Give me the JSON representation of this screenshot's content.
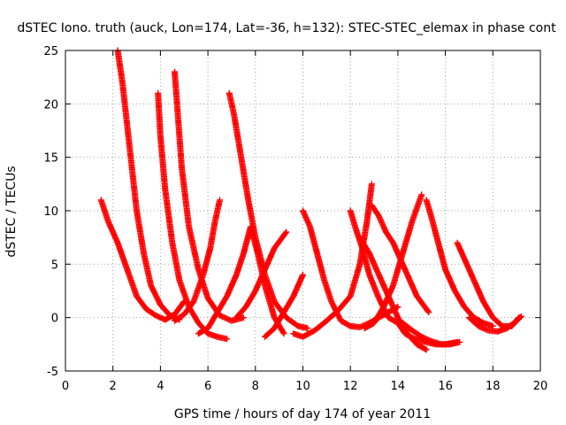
{
  "chart_data": {
    "type": "scatter",
    "title": "dSTEC Iono. truth (auck, Lon=174, Lat=-36, h=132): STEC-STEC_elemax in phase cont",
    "xlabel": "GPS time / hours of day 174 of year 2011",
    "ylabel": "dSTEC  / TECUs",
    "xlim": [
      0,
      20
    ],
    "ylim": [
      -5,
      25
    ],
    "xticks": [
      0,
      2,
      4,
      6,
      8,
      10,
      12,
      14,
      16,
      18,
      20
    ],
    "yticks": [
      -5,
      0,
      5,
      10,
      15,
      20,
      25
    ],
    "xtick_labels": [
      "0",
      "2",
      "4",
      "6",
      "8",
      "10",
      "12",
      "14",
      "16",
      "18",
      "20"
    ],
    "ytick_labels": [
      "-5",
      "0",
      "5",
      "10",
      "15",
      "20",
      "25"
    ],
    "grid": true,
    "marker": "plus",
    "series_color": "#ff0000",
    "series": [
      {
        "x": [
          1.5,
          1.8,
          2.2,
          2.6,
          3.0,
          3.4,
          3.8,
          4.2,
          4.6,
          5.0
        ],
        "y": [
          11,
          9,
          7,
          4.5,
          2,
          0.8,
          0.2,
          -0.2,
          0.3,
          1.5
        ]
      },
      {
        "x": [
          2.2,
          2.4,
          2.6,
          2.8,
          3.0,
          3.3,
          3.6,
          4.0,
          4.4,
          4.8
        ],
        "y": [
          25,
          22,
          18,
          14,
          10,
          6,
          3,
          1.2,
          0.2,
          -0.2
        ]
      },
      {
        "x": [
          3.9,
          4.0,
          4.2,
          4.5,
          4.8,
          5.2,
          5.6,
          6.0,
          6.4,
          6.8
        ],
        "y": [
          21,
          17,
          12,
          7,
          3.5,
          1,
          -0.5,
          -1.5,
          -1.8,
          -2
        ]
      },
      {
        "x": [
          4.6,
          4.7,
          4.9,
          5.2,
          5.6,
          6.0,
          6.5,
          7.0,
          7.5
        ],
        "y": [
          23,
          20,
          14,
          8.5,
          4.5,
          1.8,
          0.2,
          -0.3,
          0
        ]
      },
      {
        "x": [
          4.6,
          5.0,
          5.4,
          5.8,
          6.1,
          6.3,
          6.5
        ],
        "y": [
          -0.3,
          0.3,
          1.5,
          4,
          6.5,
          9,
          11
        ]
      },
      {
        "x": [
          6.9,
          7.1,
          7.4,
          7.7,
          8.0,
          8.4,
          8.8,
          9.3,
          9.8,
          10.2
        ],
        "y": [
          21,
          19,
          15,
          11,
          7.5,
          4,
          1.5,
          0,
          -0.8,
          -1
        ]
      },
      {
        "x": [
          5.6,
          6.0,
          6.4,
          6.8,
          7.2,
          7.5,
          7.8,
          8.1,
          8.4,
          8.8,
          9.2
        ],
        "y": [
          -1.5,
          -1,
          0.5,
          2,
          4,
          6,
          8.5,
          6,
          3,
          0,
          -1.5
        ]
      },
      {
        "x": [
          7.2,
          7.6,
          8.0,
          8.4,
          8.8,
          9.3
        ],
        "y": [
          0,
          1,
          2.5,
          4.5,
          6.5,
          8
        ]
      },
      {
        "x": [
          8.4,
          8.8,
          9.2,
          9.6,
          10.0
        ],
        "y": [
          -1.8,
          -1,
          0.5,
          2,
          4
        ]
      },
      {
        "x": [
          10.0,
          10.3,
          10.6,
          10.9,
          11.2,
          11.6,
          12.0,
          12.4,
          12.8,
          13.2,
          13.6,
          14.0
        ],
        "y": [
          10,
          8.5,
          6,
          3.5,
          1.5,
          -0.3,
          -0.8,
          -0.9,
          -0.5,
          0,
          0.5,
          1
        ]
      },
      {
        "x": [
          9.6,
          10.0,
          10.5,
          11.0,
          11.5,
          12.0,
          12.4,
          12.7,
          12.9
        ],
        "y": [
          -1.5,
          -1.8,
          -1.2,
          -0.3,
          0.7,
          2,
          5,
          9,
          12.5
        ]
      },
      {
        "x": [
          12.0,
          12.2,
          12.5,
          12.8,
          13.2,
          13.6,
          14.0,
          14.3,
          14.7,
          15.2,
          15.6,
          16.0,
          16.5
        ],
        "y": [
          10,
          8.5,
          6.5,
          4,
          1.8,
          0,
          -0.5,
          -1.5,
          -2,
          -2.3,
          -2.5,
          -2.5,
          -2.3
        ]
      },
      {
        "x": [
          12.4,
          12.8,
          13.2,
          13.6,
          14.0,
          14.4,
          14.8,
          15.2
        ],
        "y": [
          7.5,
          6,
          4,
          2,
          0,
          -1.5,
          -2.5,
          -3
        ]
      },
      {
        "x": [
          12.9,
          13.2,
          13.5,
          13.8,
          14.0,
          14.4,
          14.8,
          15.3
        ],
        "y": [
          10.5,
          9.5,
          8,
          7,
          6,
          4,
          2,
          0.5
        ]
      },
      {
        "x": [
          12.6,
          13.0,
          13.4,
          13.8,
          14.2,
          14.6,
          15.0
        ],
        "y": [
          -1,
          -0.5,
          1,
          3,
          6,
          9,
          11.5
        ]
      },
      {
        "x": [
          15.2,
          15.4,
          15.7,
          16.0,
          16.4,
          16.8,
          17.2,
          17.6,
          18.0
        ],
        "y": [
          11,
          9.5,
          7,
          4.5,
          2.5,
          1,
          0,
          -0.5,
          -0.8
        ]
      },
      {
        "x": [
          16.5,
          16.8,
          17.2,
          17.6,
          18.0,
          18.4,
          18.8,
          19.1
        ],
        "y": [
          7,
          5.5,
          3.5,
          1.5,
          0,
          -0.8,
          -0.8,
          0
        ]
      },
      {
        "x": [
          14.2,
          14.6,
          15.0,
          15.4,
          15.8,
          16.2,
          16.6
        ],
        "y": [
          -0.5,
          -1.2,
          -1.8,
          -2.2,
          -2.5,
          -2.5,
          -2.3
        ]
      },
      {
        "x": [
          17.0,
          17.4,
          17.8,
          18.2,
          18.6,
          19.0,
          19.2
        ],
        "y": [
          0,
          -0.8,
          -1.2,
          -1.3,
          -1,
          -0.3,
          0.1
        ]
      }
    ]
  }
}
